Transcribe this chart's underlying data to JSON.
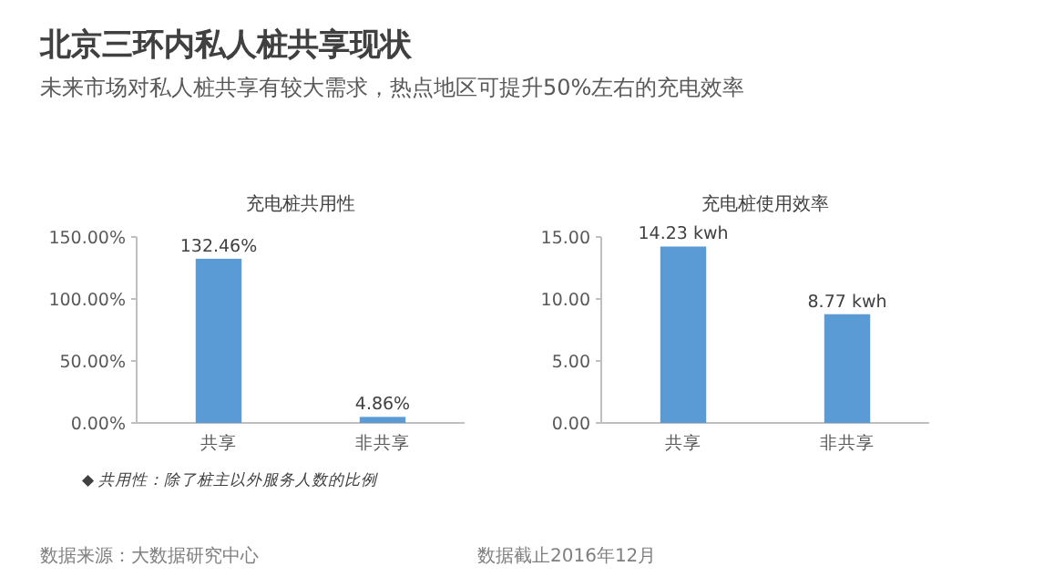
{
  "chart_data": [
    {
      "type": "other",
      "title": "北京三环内私人桩共享现状",
      "subtitle": "未来市场对私人桩共享有较大需求，热点地区可提升50%左右的充电效率",
      "annotations": [
        "数据来源：大数据研究中心",
        "数据截止2016年12月"
      ]
    },
    {
      "type": "bar",
      "title": "充电桩共用性",
      "categories": [
        "共享",
        "非共享"
      ],
      "values": [
        132.46,
        4.86
      ],
      "value_labels": [
        "132.46%",
        "4.86%"
      ],
      "color": "#5b9bd5",
      "ylim": [
        0,
        150
      ],
      "yticks": [
        {
          "value": 0,
          "label": "0.00%"
        },
        {
          "value": 50,
          "label": "50.00%"
        },
        {
          "value": 100,
          "label": "100.00%"
        },
        {
          "value": 150,
          "label": "150.00%"
        }
      ],
      "grid": false,
      "annotations": [
        "◆  共用性：除了桩主以外服务人数的比例"
      ]
    },
    {
      "type": "bar",
      "title": "充电桩使用效率",
      "categories": [
        "共享",
        "非共享"
      ],
      "values": [
        14.23,
        8.77
      ],
      "value_labels": [
        "14.23 kwh",
        "8.77 kwh"
      ],
      "color": "#5b9bd5",
      "ylim": [
        0,
        15
      ],
      "yticks": [
        {
          "value": 0,
          "label": "0.00"
        },
        {
          "value": 5,
          "label": "5.00"
        },
        {
          "value": 10,
          "label": "10.00"
        },
        {
          "value": 15,
          "label": "15.00"
        }
      ],
      "grid": false
    }
  ]
}
